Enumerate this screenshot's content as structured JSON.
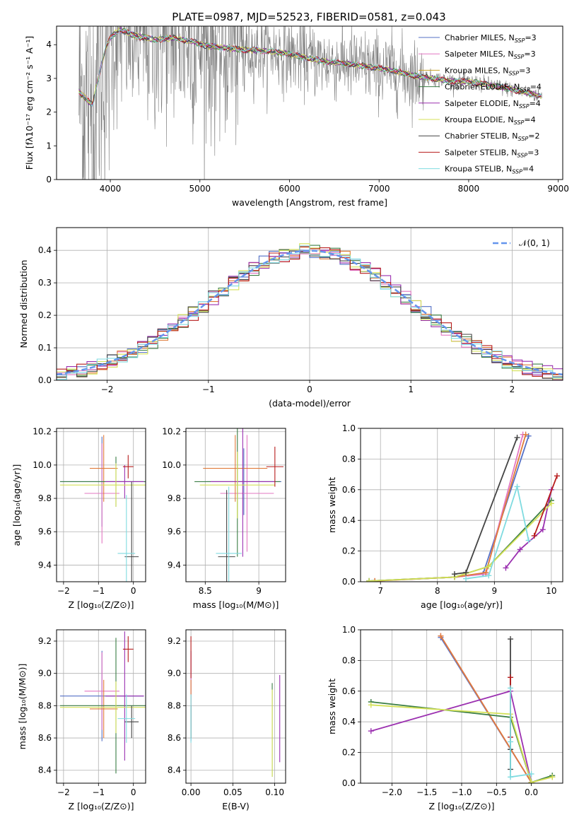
{
  "figure": {
    "title": "PLATE=0987, MJD=52523, FIBERID=0581, z=0.043"
  },
  "chart_data": [
    {
      "id": "spectrum",
      "type": "line",
      "xlabel": "wavelength [Angstrom, rest frame]",
      "ylabel": "Flux [fλ10⁻¹⁷ erg cm⁻² s⁻¹ A⁻¹]",
      "xlim": [
        3400,
        9050
      ],
      "ylim": [
        0,
        4.55
      ],
      "xticks": [
        4000,
        5000,
        6000,
        7000,
        8000,
        9000
      ],
      "yticks": [
        0,
        1,
        2,
        3,
        4
      ],
      "grid": false,
      "legend": "top-right",
      "data_range_x": [
        3650,
        8820
      ],
      "observed_color": "#808080",
      "continuum": [
        [
          3650,
          2.6
        ],
        [
          3800,
          2.2
        ],
        [
          3900,
          3.4
        ],
        [
          3950,
          3.9
        ],
        [
          4000,
          4.2
        ],
        [
          4100,
          4.45
        ],
        [
          4300,
          4.25
        ],
        [
          4500,
          4.15
        ],
        [
          4700,
          4.2
        ],
        [
          4900,
          4.1
        ],
        [
          5100,
          3.95
        ],
        [
          5300,
          3.9
        ],
        [
          5500,
          3.85
        ],
        [
          5800,
          3.8
        ],
        [
          6000,
          3.72
        ],
        [
          6200,
          3.6
        ],
        [
          6400,
          3.5
        ],
        [
          6600,
          3.45
        ],
        [
          6800,
          3.38
        ],
        [
          7000,
          3.3
        ],
        [
          7200,
          3.2
        ],
        [
          7400,
          3.08
        ],
        [
          7600,
          3.0
        ],
        [
          7800,
          2.92
        ],
        [
          8000,
          2.9
        ],
        [
          8200,
          2.82
        ],
        [
          8400,
          2.72
        ],
        [
          8600,
          2.6
        ],
        [
          8820,
          2.48
        ]
      ],
      "series": [
        {
          "name": "Chabrier MILES, N",
          "sub": "SSP",
          "tail": "=3",
          "color": "#5470c6"
        },
        {
          "name": "Salpeter MILES, N",
          "sub": "SSP",
          "tail": "=3",
          "color": "#e377c2"
        },
        {
          "name": "Kroupa MILES, N",
          "sub": "SSP",
          "tail": "=3",
          "color": "#c9a227"
        },
        {
          "name": "Chabrier ELODIE, N",
          "sub": "SSP",
          "tail": "=4",
          "color": "#3a7d44"
        },
        {
          "name": "Salpeter ELODIE, N",
          "sub": "SSP",
          "tail": "=4",
          "color": "#9b30b0"
        },
        {
          "name": "Kroupa ELODIE, N",
          "sub": "SSP",
          "tail": "=4",
          "color": "#d4e157"
        },
        {
          "name": "Chabrier STELIB, N",
          "sub": "SSP",
          "tail": "=2",
          "color": "#444444"
        },
        {
          "name": "Salpeter STELIB, N",
          "sub": "SSP",
          "tail": "=3",
          "color": "#b71c1c"
        },
        {
          "name": "Kroupa STELIB, N",
          "sub": "SSP",
          "tail": "=4",
          "color": "#7fdbe0"
        }
      ]
    },
    {
      "id": "residuals",
      "type": "histogram",
      "xlabel": "(data-model)/error",
      "ylabel": "Normed distribution",
      "xlim": [
        -2.5,
        2.5
      ],
      "ylim": [
        0,
        0.47
      ],
      "xticks": [
        -2,
        -1,
        0,
        1,
        2
      ],
      "yticks": [
        0.0,
        0.1,
        0.2,
        0.3,
        0.4
      ],
      "grid": true,
      "legend": "top-right",
      "reference_label": "𝒩(0, 1)",
      "reference_color": "#6495ed",
      "bin_width": 0.1,
      "colors": [
        "#5470c6",
        "#e377c2",
        "#e07b39",
        "#3a7d44",
        "#9b30b0",
        "#d4e157",
        "#444444",
        "#b71c1c",
        "#7fdbe0"
      ]
    },
    {
      "id": "age_vs_Z",
      "type": "errorbar",
      "xlabel": "Z [log₁₀(Z/Z⊙)]",
      "ylabel": "age  [log₁₀(age/yr)]",
      "xlim": [
        -2.2,
        0.35
      ],
      "ylim": [
        9.3,
        10.22
      ],
      "xticks": [
        -2,
        -1,
        0
      ],
      "yticks": [
        9.4,
        9.6,
        9.8,
        10.0,
        10.2
      ],
      "grid": true,
      "points": [
        {
          "x": -0.9,
          "y": 9.9,
          "xerr": 1.2,
          "yerr": 0.27,
          "color": "#5470c6"
        },
        {
          "x": -0.9,
          "y": 9.83,
          "xerr": 0.5,
          "yerr": 0.3,
          "color": "#e377c2"
        },
        {
          "x": -0.85,
          "y": 9.98,
          "xerr": 0.4,
          "yerr": 0.2,
          "color": "#e07b39"
        },
        {
          "x": -0.5,
          "y": 9.9,
          "xerr": 1.6,
          "yerr": 0.15,
          "color": "#3a7d44"
        },
        {
          "x": -0.25,
          "y": 9.9,
          "xerr": 0.55,
          "yerr": 0.1,
          "color": "#9b30b0"
        },
        {
          "x": -0.5,
          "y": 9.88,
          "xerr": 1.6,
          "yerr": 0.13,
          "color": "#d4e157"
        },
        {
          "x": -0.05,
          "y": 9.45,
          "xerr": 0.2,
          "yerr": 0.45,
          "color": "#444444"
        },
        {
          "x": -0.15,
          "y": 9.99,
          "xerr": 0.15,
          "yerr": 0.07,
          "color": "#b71c1c"
        },
        {
          "x": -0.2,
          "y": 9.47,
          "xerr": 0.25,
          "yerr": 0.35,
          "color": "#7fdbe0"
        }
      ]
    },
    {
      "id": "age_vs_mass",
      "type": "errorbar",
      "xlabel": "mass [log₁₀(M/M⊙)]",
      "ylabel": "",
      "xlim": [
        8.32,
        9.25
      ],
      "ylim": [
        9.3,
        10.22
      ],
      "xticks": [
        8.5,
        9.0
      ],
      "yticks": [
        9.4,
        9.6,
        9.8,
        10.0,
        10.2
      ],
      "grid": true,
      "points": [
        {
          "x": 8.86,
          "y": 9.9,
          "xerr": 0.35,
          "yerr": 0.2,
          "color": "#5470c6"
        },
        {
          "x": 8.89,
          "y": 9.83,
          "xerr": 0.25,
          "yerr": 0.35,
          "color": "#e377c2"
        },
        {
          "x": 8.78,
          "y": 9.98,
          "xerr": 0.3,
          "yerr": 0.2,
          "color": "#e07b39"
        },
        {
          "x": 8.8,
          "y": 9.9,
          "xerr": 0.4,
          "yerr": 0.45,
          "color": "#3a7d44"
        },
        {
          "x": 8.85,
          "y": 9.9,
          "xerr": 0.3,
          "yerr": 0.45,
          "color": "#9b30b0"
        },
        {
          "x": 8.8,
          "y": 9.88,
          "xerr": 0.35,
          "yerr": 0.2,
          "color": "#d4e157"
        },
        {
          "x": 8.7,
          "y": 9.45,
          "xerr": 0.08,
          "yerr": 0.4,
          "color": "#444444"
        },
        {
          "x": 9.15,
          "y": 9.99,
          "xerr": 0.08,
          "yerr": 0.12,
          "color": "#b71c1c"
        },
        {
          "x": 8.72,
          "y": 9.47,
          "xerr": 0.12,
          "yerr": 0.4,
          "color": "#7fdbe0"
        }
      ]
    },
    {
      "id": "mass_weight_vs_age",
      "type": "line",
      "xlabel": "age  [log₁₀(age/yr)]",
      "ylabel": "mass weight",
      "xlim": [
        6.65,
        10.2
      ],
      "ylim": [
        0,
        1.0
      ],
      "xticks": [
        7,
        8,
        9,
        10
      ],
      "yticks": [
        0.0,
        0.2,
        0.4,
        0.6,
        0.8,
        1.0
      ],
      "grid": true,
      "series": [
        {
          "color": "#5470c6",
          "x": [
            6.8,
            8.3,
            8.8,
            9.6
          ],
          "y": [
            0.005,
            0.03,
            0.05,
            0.95
          ]
        },
        {
          "color": "#e377c2",
          "x": [
            6.9,
            8.3,
            8.85,
            9.5
          ],
          "y": [
            0.005,
            0.03,
            0.05,
            0.96
          ]
        },
        {
          "color": "#e07b39",
          "x": [
            6.9,
            8.3,
            8.85,
            9.55
          ],
          "y": [
            0.005,
            0.03,
            0.06,
            0.96
          ]
        },
        {
          "color": "#3a7d44",
          "x": [
            6.8,
            8.3,
            8.9,
            10.0
          ],
          "y": [
            0.005,
            0.03,
            0.1,
            0.53
          ]
        },
        {
          "color": "#9b30b0",
          "x": [
            9.2,
            9.45,
            9.85,
            10.0
          ],
          "y": [
            0.09,
            0.21,
            0.34,
            0.6
          ]
        },
        {
          "color": "#d4e157",
          "x": [
            6.8,
            8.3,
            8.9,
            10.0
          ],
          "y": [
            0.005,
            0.03,
            0.1,
            0.51
          ]
        },
        {
          "color": "#444444",
          "x": [
            8.3,
            8.5,
            9.4
          ],
          "y": [
            0.05,
            0.06,
            0.94
          ]
        },
        {
          "color": "#b71c1c",
          "x": [
            9.7,
            10.1
          ],
          "y": [
            0.3,
            0.69
          ]
        },
        {
          "color": "#7fdbe0",
          "x": [
            8.5,
            8.9,
            9.4,
            9.6
          ],
          "y": [
            0.02,
            0.04,
            0.62,
            0.27
          ]
        }
      ]
    },
    {
      "id": "mass_vs_Z",
      "type": "errorbar",
      "xlabel": "Z [log₁₀(Z/Z⊙)]",
      "ylabel": "mass [log₁₀(M/M⊙)]",
      "xlim": [
        -2.2,
        0.35
      ],
      "ylim": [
        8.32,
        9.27
      ],
      "xticks": [
        -2,
        -1,
        0
      ],
      "yticks": [
        8.4,
        8.6,
        8.8,
        9.0,
        9.2
      ],
      "grid": true,
      "points": [
        {
          "x": -0.9,
          "y": 8.86,
          "xerr": 1.2,
          "yerr": 0.28,
          "color": "#5470c6"
        },
        {
          "x": -0.9,
          "y": 8.89,
          "xerr": 0.5,
          "yerr": 0.24,
          "color": "#e377c2"
        },
        {
          "x": -0.85,
          "y": 8.78,
          "xerr": 0.4,
          "yerr": 0.18,
          "color": "#e07b39"
        },
        {
          "x": -0.5,
          "y": 8.8,
          "xerr": 1.6,
          "yerr": 0.42,
          "color": "#3a7d44"
        },
        {
          "x": -0.25,
          "y": 8.86,
          "xerr": 0.55,
          "yerr": 0.4,
          "color": "#9b30b0"
        },
        {
          "x": -0.5,
          "y": 8.79,
          "xerr": 1.6,
          "yerr": 0.16,
          "color": "#d4e157"
        },
        {
          "x": -0.05,
          "y": 8.7,
          "xerr": 0.2,
          "yerr": 0.1,
          "color": "#444444"
        },
        {
          "x": -0.15,
          "y": 9.15,
          "xerr": 0.15,
          "yerr": 0.08,
          "color": "#b71c1c"
        },
        {
          "x": -0.2,
          "y": 8.72,
          "xerr": 0.25,
          "yerr": 0.15,
          "color": "#7fdbe0"
        }
      ]
    },
    {
      "id": "mass_vs_ebv",
      "type": "errorbar",
      "xlabel": "E(B-V)",
      "ylabel": "",
      "xlim": [
        -0.006,
        0.113
      ],
      "ylim": [
        8.32,
        9.27
      ],
      "xticks": [
        0.0,
        0.05,
        0.1
      ],
      "xtick_labels": [
        "0.00",
        "0.05",
        "0.10"
      ],
      "yticks": [
        8.4,
        8.6,
        8.8,
        9.0,
        9.2
      ],
      "grid": true,
      "points": [
        {
          "x": 0.0,
          "y": 8.86,
          "yerr": 0.28,
          "color": "#5470c6"
        },
        {
          "x": 0.0,
          "y": 8.89,
          "yerr": 0.24,
          "color": "#e377c2"
        },
        {
          "x": 0.0,
          "y": 8.78,
          "yerr": 0.18,
          "color": "#e07b39"
        },
        {
          "x": 0.097,
          "y": 8.65,
          "yerr": 0.29,
          "color": "#3a7d44"
        },
        {
          "x": 0.106,
          "y": 8.72,
          "yerr": 0.27,
          "color": "#9b30b0"
        },
        {
          "x": 0.097,
          "y": 8.63,
          "yerr": 0.27,
          "color": "#d4e157"
        },
        {
          "x": 0.0,
          "y": 8.7,
          "yerr": 0.1,
          "color": "#444444"
        },
        {
          "x": 0.0,
          "y": 9.1,
          "yerr": 0.13,
          "color": "#b71c1c"
        },
        {
          "x": 0.0,
          "y": 8.72,
          "yerr": 0.15,
          "color": "#7fdbe0"
        }
      ]
    },
    {
      "id": "mass_weight_vs_Z",
      "type": "line",
      "xlabel": "Z [log₁₀(Z/Z⊙)]",
      "ylabel": "mass weight",
      "xlim": [
        -2.45,
        0.45
      ],
      "ylim": [
        0,
        1.0
      ],
      "xticks": [
        -2.0,
        -1.5,
        -1.0,
        -0.5,
        0.0
      ],
      "xtick_labels": [
        "−2.0",
        "−1.5",
        "−1.0",
        "−0.5",
        "0.0"
      ],
      "yticks": [
        0.0,
        0.2,
        0.4,
        0.6,
        0.8,
        1.0
      ],
      "grid": true,
      "series": [
        {
          "color": "#5470c6",
          "x": [
            -1.3,
            0.0
          ],
          "y": [
            0.95,
            0.005
          ]
        },
        {
          "color": "#e377c2",
          "x": [
            -1.3,
            0.0
          ],
          "y": [
            0.96,
            0.005
          ]
        },
        {
          "color": "#e07b39",
          "x": [
            -1.3,
            0.0,
            0.3
          ],
          "y": [
            0.96,
            0.005,
            0.04
          ]
        },
        {
          "color": "#3a7d44",
          "x": [
            -2.3,
            -0.3,
            0.0,
            0.3
          ],
          "y": [
            0.53,
            0.43,
            0.005,
            0.05
          ]
        },
        {
          "color": "#9b30b0",
          "x": [
            -2.3,
            -0.3,
            0.0
          ],
          "y": [
            0.34,
            0.6,
            0.005
          ]
        },
        {
          "color": "#d4e157",
          "x": [
            -2.3,
            -0.3,
            0.0,
            0.3
          ],
          "y": [
            0.51,
            0.45,
            0.005,
            0.04
          ]
        },
        {
          "color": "#444444",
          "x": [
            -0.3,
            -0.3,
            -0.3
          ],
          "y": [
            0.94,
            0.22,
            0.09
          ]
        },
        {
          "color": "#b71c1c",
          "x": [
            -0.3,
            -0.3
          ],
          "y": [
            0.69,
            0.3
          ]
        },
        {
          "color": "#7fdbe0",
          "x": [
            -0.3,
            -0.3,
            -0.3,
            0.0
          ],
          "y": [
            0.62,
            0.27,
            0.04,
            0.06
          ]
        }
      ]
    }
  ]
}
